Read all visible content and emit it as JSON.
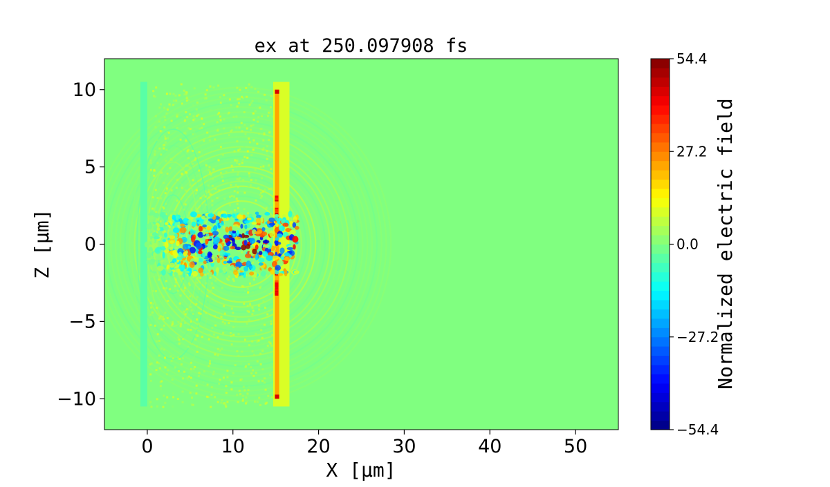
{
  "chart_data": {
    "type": "heatmap",
    "title": "ex at 250.097908 fs",
    "xlabel": "X [μm]",
    "ylabel": "Z [μm]",
    "xlim": [
      -5,
      55
    ],
    "ylim": [
      -12,
      12
    ],
    "x_ticks": [
      {
        "value": 0,
        "label": "0"
      },
      {
        "value": 10,
        "label": "10"
      },
      {
        "value": 20,
        "label": "20"
      },
      {
        "value": 30,
        "label": "30"
      },
      {
        "value": 40,
        "label": "40"
      },
      {
        "value": 50,
        "label": "50"
      }
    ],
    "y_ticks": [
      {
        "value": 10,
        "label": "10"
      },
      {
        "value": 5,
        "label": "5"
      },
      {
        "value": 0,
        "label": "0"
      },
      {
        "value": -5,
        "label": "−5"
      },
      {
        "value": -10,
        "label": "−10"
      }
    ],
    "colorbar": {
      "label": "Normalized electric field",
      "colormap": "jet",
      "range": [
        -54.4,
        54.4
      ],
      "levels": 40,
      "ticks": [
        {
          "value": 54.4,
          "label": "54.4"
        },
        {
          "value": 27.2,
          "label": "27.2"
        },
        {
          "value": 0.0,
          "label": "0.0"
        },
        {
          "value": -27.2,
          "label": "−27.2"
        },
        {
          "value": -54.4,
          "label": "−54.4"
        }
      ]
    },
    "background_value": 0.0,
    "features": {
      "left_boundary_x": 0,
      "left_boundary_z_range": [
        -10.5,
        10.5
      ],
      "left_boundary_value": -5,
      "target_front_x": 15,
      "target_z_range": [
        -10,
        10
      ],
      "target_front_value": 22,
      "target_edge_value": 45,
      "beam_channel_x_range": [
        0,
        17.5
      ],
      "beam_channel_z_range": [
        -2,
        2
      ],
      "beam_channel_min": -45,
      "beam_channel_max": 54.4,
      "wave_extent_x": 29,
      "wave_amplitude": 8
    }
  }
}
